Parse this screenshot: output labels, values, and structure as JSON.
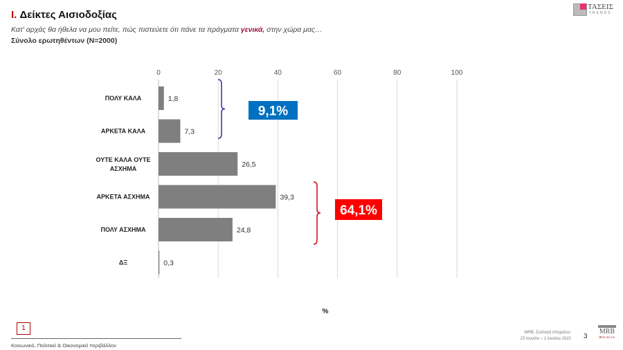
{
  "header": {
    "title_num": "I.",
    "title": "Δείκτες Αισιοδοξίας",
    "subtitle_pre": "Κατ' αρχάς θα ήθελα να μου πείτε, πώς πιστεύετε ότι πάνε τα πράγματα ",
    "subtitle_em": "γενικά,",
    "subtitle_post": " στην χώρα μας…",
    "base": "Σύνολο ερωτηθέντων (N=2000)"
  },
  "logo": {
    "name": "ΤΑΣΕΙΣ",
    "sub": "TRENDS"
  },
  "chart_data": {
    "type": "bar",
    "orientation": "horizontal",
    "categories": [
      "ΠΟΛΥ ΚΑΛΑ",
      "ΑΡΚΕΤΑ ΚΑΛΑ",
      "ΟΥΤΕ ΚΑΛΑ ΟΥΤΕ ΑΣΧΗΜΑ",
      "ΑΡΚΕΤΑ ΑΣΧΗΜΑ",
      "ΠΟΛΥ ΑΣΧΗΜΑ",
      "ΔΞ"
    ],
    "values": [
      1.8,
      7.3,
      26.5,
      39.3,
      24.8,
      0.3
    ],
    "value_labels": [
      "1,8",
      "7,3",
      "26,5",
      "39,3",
      "24,8",
      "0,3"
    ],
    "xlim": [
      0,
      100
    ],
    "xticks": [
      0,
      20,
      40,
      60,
      80,
      100
    ],
    "xlabel": "%",
    "bar_color": "#7f7f7f",
    "grid": true,
    "annotations": [
      {
        "label": "9,1%",
        "groups": [
          0,
          1
        ],
        "color": "#0070c0"
      },
      {
        "label": "64,1%",
        "groups": [
          3,
          4
        ],
        "color": "#ff0000"
      }
    ]
  },
  "footer": {
    "page_box": "1",
    "section": "Κοινωνικό, Πολιτικό & Οικονομικό περιβάλλον",
    "source_line1": "MRB, Συλλογή στοιχείων:",
    "source_line2": "23 Ιουνίου – 1 Ιουλίου 2021",
    "page_number": "3",
    "mrb_logo": "MRB",
    "mrb_sub": "HELLAS S.A."
  }
}
